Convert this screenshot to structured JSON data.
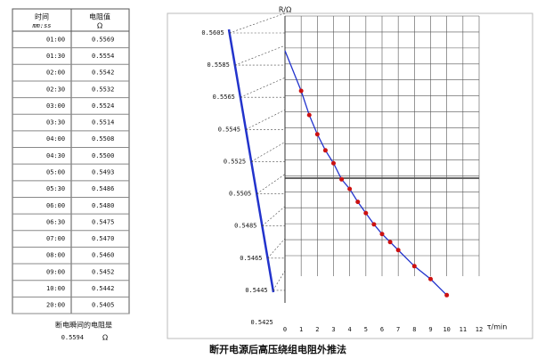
{
  "table": {
    "header": [
      [
        "时间",
        "mm:ss"
      ],
      [
        "电阻值",
        "Ω"
      ]
    ],
    "rows": [
      [
        "01:00",
        "0.5569"
      ],
      [
        "01:30",
        "0.5554"
      ],
      [
        "02:00",
        "0.5542"
      ],
      [
        "02:30",
        "0.5532"
      ],
      [
        "03:00",
        "0.5524"
      ],
      [
        "03:30",
        "0.5514"
      ],
      [
        "04:00",
        "0.5508"
      ],
      [
        "04:30",
        "0.5500"
      ],
      [
        "05:00",
        "0.5493"
      ],
      [
        "05:30",
        "0.5486"
      ],
      [
        "06:00",
        "0.5480"
      ],
      [
        "06:30",
        "0.5475"
      ],
      [
        "07:00",
        "0.5470"
      ],
      [
        "08:00",
        "0.5460"
      ],
      [
        "09:00",
        "0.5452"
      ],
      [
        "10:00",
        "0.5442"
      ],
      [
        "20:00",
        "0.5405"
      ]
    ]
  },
  "caption": {
    "text": "断电瞬间的电阻是",
    "value": "0.5594",
    "unit": "Ω"
  },
  "chart_data": {
    "type": "scatter",
    "title": "断开电源后高压绕组电阻外推法",
    "y_label": "R/Ω",
    "x_label": "τ/min",
    "xlim": [
      0,
      12
    ],
    "xticks": [
      0,
      1,
      2,
      3,
      4,
      5,
      6,
      7,
      8,
      9,
      10,
      11,
      12
    ],
    "ylim": [
      0.5425,
      0.5605
    ],
    "yticks": [
      0.5605,
      0.5585,
      0.5565,
      0.5545,
      0.5525,
      0.5505,
      0.5485,
      0.5465,
      0.5445,
      0.5425
    ],
    "series": [
      {
        "color": "#cc1111",
        "x": [
          1,
          1.5,
          2,
          2.5,
          3,
          3.5,
          4,
          4.5,
          5,
          5.5,
          6,
          6.5,
          7,
          8,
          9,
          10
        ],
        "values": [
          0.5569,
          0.5554,
          0.5542,
          0.5532,
          0.5524,
          0.5514,
          0.5508,
          0.55,
          0.5493,
          0.5486,
          0.548,
          0.5475,
          0.547,
          0.546,
          0.5452,
          0.5442
        ]
      },
      {
        "color": "#2233cc",
        "x": [
          0,
          1,
          1.5,
          2,
          2.5,
          3,
          3.5,
          4,
          4.5,
          5,
          5.5,
          6,
          6.5,
          7,
          8,
          9,
          10
        ],
        "values": [
          0.5594,
          0.5569,
          0.5554,
          0.5542,
          0.5532,
          0.5524,
          0.5514,
          0.5508,
          0.55,
          0.5493,
          0.5486,
          0.548,
          0.5475,
          0.547,
          0.546,
          0.5452,
          0.5442
        ]
      }
    ]
  }
}
